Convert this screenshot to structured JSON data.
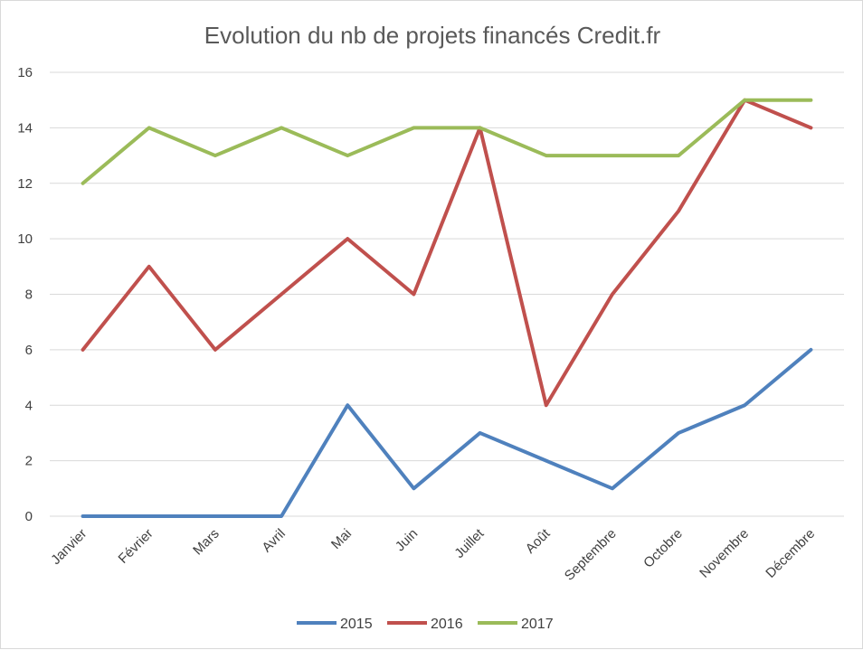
{
  "chart_data": {
    "type": "line",
    "title": "Evolution du nb de projets financés Credit.fr",
    "categories": [
      "Janvier",
      "Février",
      "Mars",
      "Avril",
      "Mai",
      "Juin",
      "Juillet",
      "Août",
      "Septembre",
      "Octobre",
      "Novembre",
      "Décembre"
    ],
    "ylim": [
      0,
      16
    ],
    "yticks": [
      0,
      2,
      4,
      6,
      8,
      10,
      12,
      14,
      16
    ],
    "grid": true,
    "legend_position": "bottom",
    "series": [
      {
        "name": "2015",
        "color": "#4f81bd",
        "values": [
          0,
          0,
          0,
          0,
          4,
          1,
          3,
          2,
          1,
          3,
          4,
          6
        ]
      },
      {
        "name": "2016",
        "color": "#c0504d",
        "values": [
          6,
          9,
          6,
          8,
          10,
          8,
          14,
          4,
          8,
          11,
          15,
          14
        ]
      },
      {
        "name": "2017",
        "color": "#9bbb59",
        "values": [
          12,
          14,
          13,
          14,
          13,
          14,
          14,
          13,
          13,
          13,
          15,
          15
        ]
      }
    ]
  }
}
